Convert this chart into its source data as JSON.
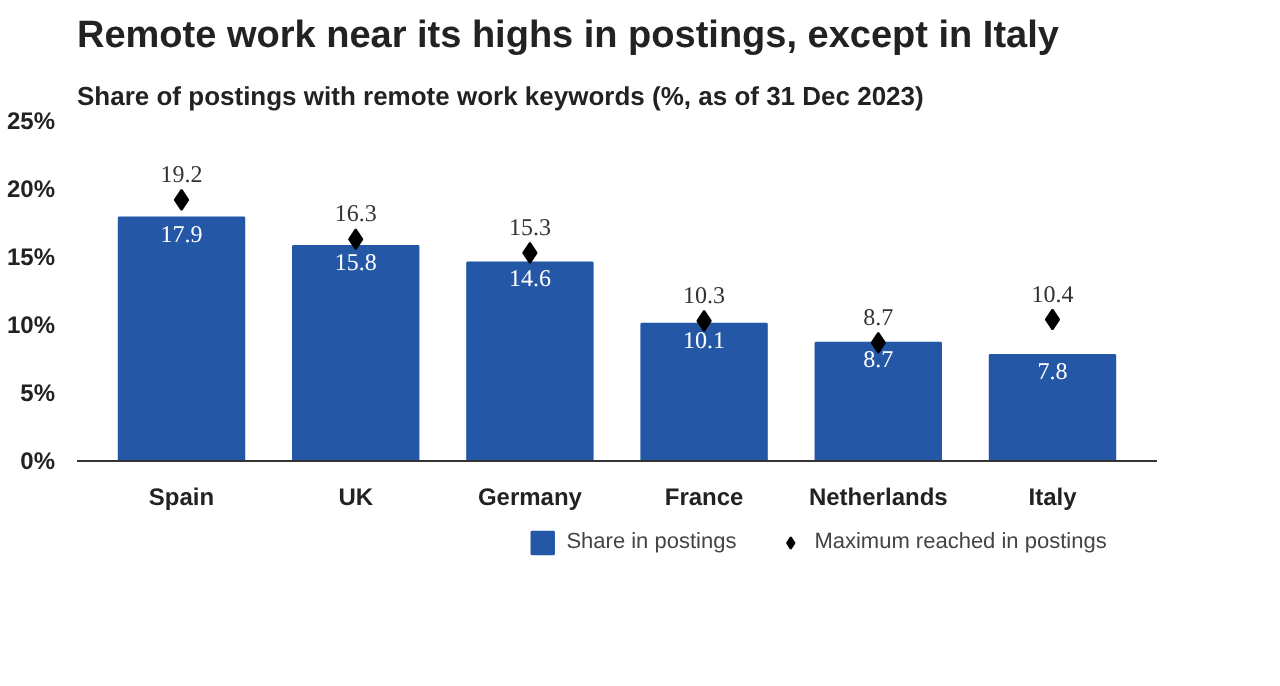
{
  "chart_data": {
    "type": "bar",
    "title": "Remote work near its highs in postings, except in Italy",
    "subtitle": "Share of postings with remote work keywords (%, as of 31 Dec 2023)",
    "categories": [
      "Spain",
      "UK",
      "Germany",
      "France",
      "Netherlands",
      "Italy"
    ],
    "series": [
      {
        "name": "Share in postings",
        "color": "#2557a7",
        "values": [
          17.9,
          15.8,
          14.6,
          10.1,
          8.7,
          7.8
        ]
      },
      {
        "name": "Maximum reached in postings",
        "type": "scatter",
        "color": "#000000",
        "values": [
          19.2,
          16.3,
          15.3,
          10.3,
          8.7,
          10.4
        ]
      }
    ],
    "ylim": [
      0,
      25
    ],
    "yticks": [
      {
        "value": 0,
        "label": "0%"
      },
      {
        "value": 5,
        "label": "5%"
      },
      {
        "value": 10,
        "label": "10%"
      },
      {
        "value": 15,
        "label": "15%"
      },
      {
        "value": 20,
        "label": "20%"
      },
      {
        "value": 25,
        "label": "25%"
      }
    ],
    "data_labels": true,
    "marker": "diamond",
    "legend": "bottom right",
    "grid": false
  }
}
